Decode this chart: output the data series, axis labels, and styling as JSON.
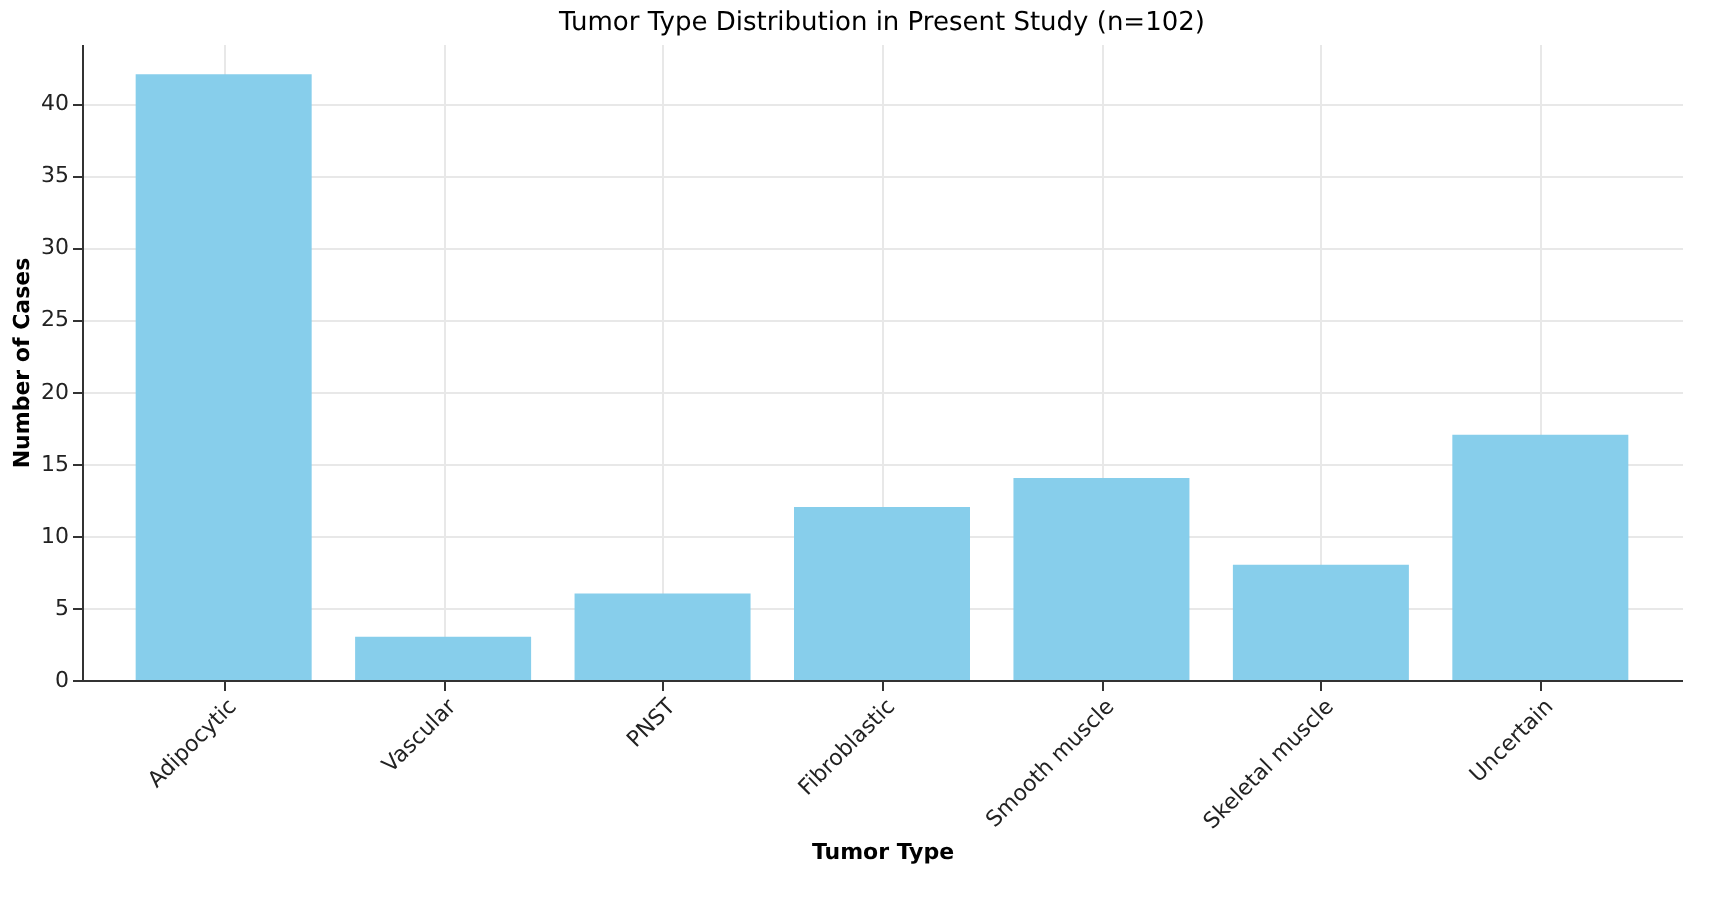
{
  "chart_data": {
    "type": "bar",
    "title": "Tumor Type Distribution in Present Study (n=102)",
    "xlabel": "Tumor Type",
    "ylabel": "Number of Cases",
    "categories": [
      "Adipocytic",
      "Vascular",
      "PNST",
      "Fibroblastic",
      "Smooth muscle",
      "Skeletal muscle",
      "Uncertain"
    ],
    "values": [
      42,
      3,
      6,
      12,
      14,
      8,
      17
    ],
    "color": "#87ceeb",
    "ylim": [
      0,
      44.1
    ],
    "yticks": [
      0,
      5,
      10,
      15,
      20,
      25,
      30,
      35,
      40
    ],
    "grid": true
  }
}
